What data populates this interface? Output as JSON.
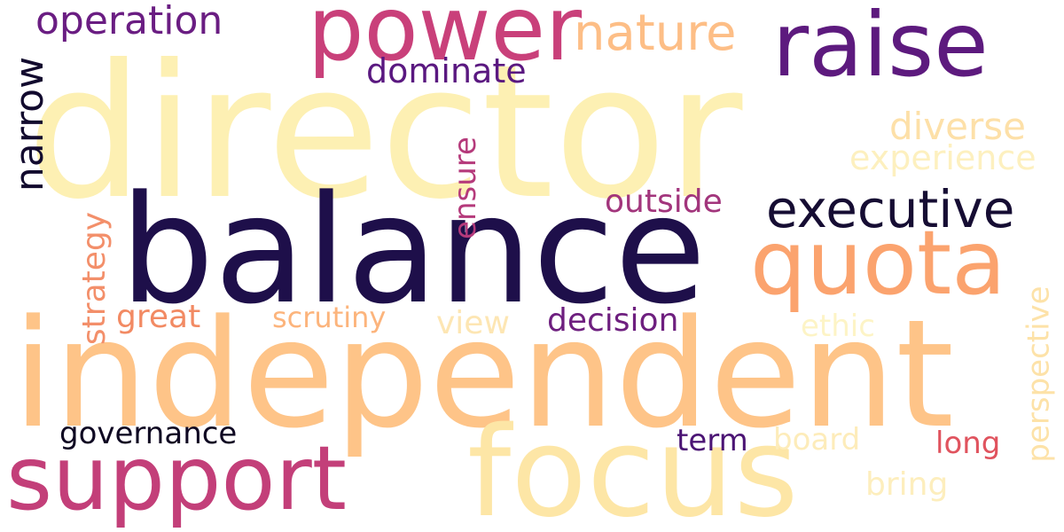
{
  "cloud": {
    "background": "#ffffff",
    "words": [
      {
        "text": "director",
        "color": "#fdf0b3"
      },
      {
        "text": "balance",
        "color": "#1e0f4a"
      },
      {
        "text": "independent",
        "color": "#fec488"
      },
      {
        "text": "focus",
        "color": "#fde6a6"
      },
      {
        "text": "support",
        "color": "#c33f79"
      },
      {
        "text": "power",
        "color": "#c9407a"
      },
      {
        "text": "raise",
        "color": "#5d1a7e"
      },
      {
        "text": "quota",
        "color": "#fba36e"
      },
      {
        "text": "executive",
        "color": "#160d33"
      },
      {
        "text": "nature",
        "color": "#fdbe86"
      },
      {
        "text": "operation",
        "color": "#6a1d82"
      },
      {
        "text": "dominate",
        "color": "#5a1880"
      },
      {
        "text": "narrow",
        "color": "#120a2e"
      },
      {
        "text": "diverse",
        "color": "#fde0a8"
      },
      {
        "text": "experience",
        "color": "#fdf0bf"
      },
      {
        "text": "ensure",
        "color": "#b53a7b"
      },
      {
        "text": "outside",
        "color": "#a2357c"
      },
      {
        "text": "strategy",
        "color": "#f38f6a"
      },
      {
        "text": "great",
        "color": "#f28a63"
      },
      {
        "text": "scrutiny",
        "color": "#fcb47c"
      },
      {
        "text": "view",
        "color": "#fde6b3"
      },
      {
        "text": "decision",
        "color": "#6e1f7f"
      },
      {
        "text": "ethic",
        "color": "#fdf4c6"
      },
      {
        "text": "perspective",
        "color": "#fde2a8"
      },
      {
        "text": "governance",
        "color": "#0f0822"
      },
      {
        "text": "term",
        "color": "#4b1474"
      },
      {
        "text": "board",
        "color": "#fdecba"
      },
      {
        "text": "long",
        "color": "#e0535e"
      },
      {
        "text": "bring",
        "color": "#fdeebd"
      }
    ]
  }
}
